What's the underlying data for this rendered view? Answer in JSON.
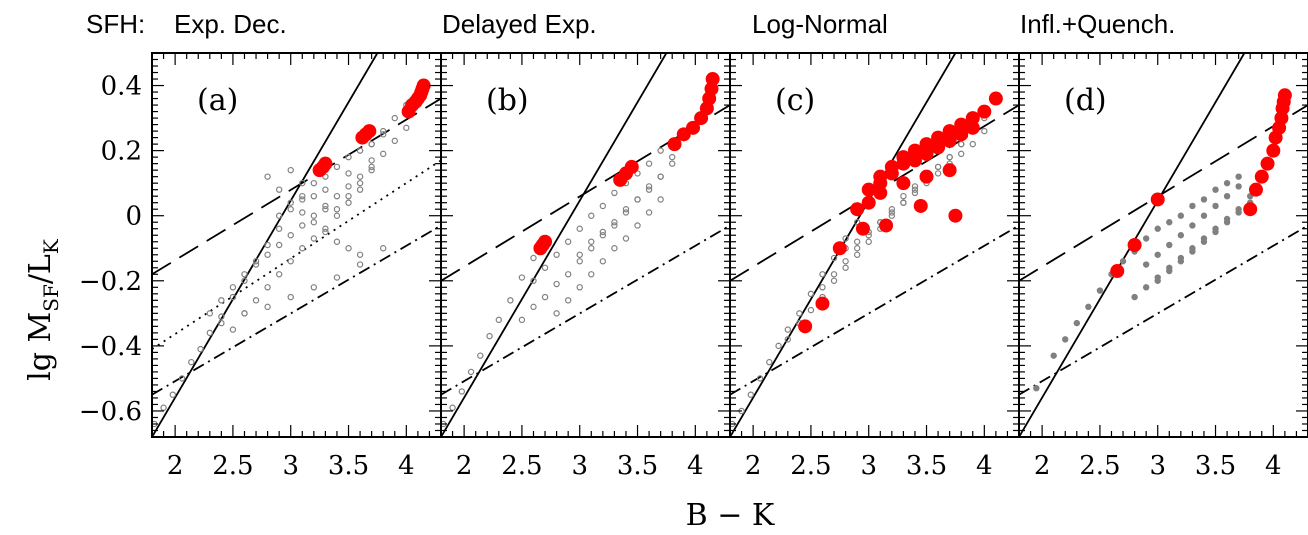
{
  "figure": {
    "xlabel": "B − K",
    "ylabel_main": "lg M",
    "ylabel_sub1": "SF",
    "ylabel_mid": "/L",
    "ylabel_sub2": "K",
    "sfh_prefix": "SFH:",
    "colors": {
      "model": "#808080",
      "highlight": "#ff0000",
      "line": "#000000"
    }
  },
  "chart_data": [
    {
      "type": "scatter",
      "panel": "(a)",
      "title": "Exp. Dec.",
      "xlim": [
        1.8,
        4.3
      ],
      "ylim": [
        -0.68,
        0.5
      ],
      "xticks": [
        "2",
        "2.5",
        "3",
        "3.5",
        "4"
      ],
      "yticks": [
        "−0.6",
        "−0.4",
        "−0.2",
        "0",
        "0.2",
        "0.4"
      ],
      "lines": [
        {
          "style": "solid",
          "x": [
            1.8,
            3.75
          ],
          "y": [
            -0.68,
            0.5
          ]
        },
        {
          "style": "dashed",
          "x": [
            1.8,
            4.3
          ],
          "y": [
            -0.18,
            0.36
          ]
        },
        {
          "style": "dotted",
          "x": [
            1.8,
            4.3
          ],
          "y": [
            -0.41,
            0.17
          ]
        },
        {
          "style": "dashdot",
          "x": [
            1.8,
            4.3
          ],
          "y": [
            -0.55,
            -0.03
          ]
        }
      ],
      "series": [
        {
          "marker": "open-circle",
          "color": "#808080",
          "x": [
            1.82,
            1.9,
            1.98,
            2.06,
            2.14,
            2.22,
            2.3,
            2.4,
            2.5,
            2.6,
            2.7,
            2.8,
            2.9,
            3.0,
            3.1,
            3.2,
            3.3,
            3.4,
            3.5,
            3.6,
            3.7,
            3.8,
            3.9,
            4.0,
            2.3,
            2.4,
            2.5,
            2.6,
            2.7,
            2.8,
            2.9,
            3.0,
            3.1,
            3.2,
            3.3,
            3.4,
            3.5,
            3.6,
            3.7,
            3.8,
            3.9,
            4.0,
            2.5,
            2.6,
            2.7,
            2.8,
            2.9,
            3.0,
            3.1,
            3.2,
            3.3,
            3.4,
            3.5,
            3.6,
            2.8,
            2.9,
            3.0,
            3.1,
            3.2,
            3.3,
            3.4,
            3.5,
            3.6,
            3.7,
            3.8,
            3.0,
            3.1,
            3.2,
            3.3,
            3.4,
            3.5,
            3.6,
            3.7,
            2.4,
            2.6,
            2.8,
            3.0,
            3.2,
            3.4,
            3.6,
            3.8,
            2.9,
            3.1,
            3.3,
            3.5,
            3.7
          ],
          "y": [
            -0.64,
            -0.59,
            -0.55,
            -0.5,
            -0.45,
            -0.41,
            -0.36,
            -0.31,
            -0.25,
            -0.2,
            -0.14,
            -0.09,
            -0.04,
            0.02,
            0.06,
            0.1,
            0.12,
            0.15,
            0.18,
            0.2,
            0.22,
            0.26,
            0.3,
            0.34,
            -0.3,
            -0.26,
            -0.22,
            -0.18,
            -0.15,
            -0.12,
            -0.09,
            -0.06,
            -0.03,
            0.0,
            0.03,
            0.06,
            0.09,
            0.12,
            0.15,
            0.19,
            0.23,
            0.27,
            -0.35,
            -0.3,
            -0.26,
            -0.22,
            -0.18,
            -0.14,
            -0.1,
            -0.07,
            -0.04,
            0.0,
            0.04,
            0.08,
            0.12,
            0.08,
            0.04,
            0.01,
            -0.02,
            -0.05,
            -0.08,
            -0.1,
            -0.12,
            0.22,
            0.25,
            0.14,
            0.1,
            0.06,
            0.02,
            0.02,
            0.06,
            0.1,
            0.14,
            -0.33,
            -0.3,
            -0.28,
            -0.25,
            -0.22,
            -0.19,
            -0.15,
            -0.1,
            0.0,
            0.05,
            0.08,
            0.13,
            0.17
          ]
        },
        {
          "marker": "filled-circle",
          "color": "#ff0000",
          "x": [
            3.25,
            3.28,
            3.3,
            3.62,
            3.65,
            3.68,
            4.02,
            4.05,
            4.08,
            4.1,
            4.12,
            4.13,
            4.14,
            4.15
          ],
          "y": [
            0.14,
            0.15,
            0.16,
            0.24,
            0.25,
            0.26,
            0.32,
            0.34,
            0.35,
            0.36,
            0.37,
            0.38,
            0.39,
            0.4
          ]
        }
      ]
    },
    {
      "type": "scatter",
      "panel": "(b)",
      "title": "Delayed Exp.",
      "xlim": [
        1.8,
        4.3
      ],
      "ylim": [
        -0.68,
        0.5
      ],
      "xticks": [
        "2",
        "2.5",
        "3",
        "3.5",
        "4"
      ],
      "lines": [
        {
          "style": "solid",
          "x": [
            1.8,
            3.75
          ],
          "y": [
            -0.68,
            0.5
          ]
        },
        {
          "style": "dashed",
          "x": [
            1.8,
            4.3
          ],
          "y": [
            -0.2,
            0.34
          ]
        },
        {
          "style": "dashdot",
          "x": [
            1.8,
            4.3
          ],
          "y": [
            -0.55,
            -0.03
          ]
        }
      ],
      "series": [
        {
          "marker": "open-circle",
          "color": "#808080",
          "x": [
            1.82,
            1.9,
            1.98,
            2.06,
            2.14,
            2.22,
            2.3,
            2.4,
            2.5,
            2.6,
            2.7,
            2.5,
            2.6,
            2.7,
            2.8,
            2.9,
            3.0,
            3.1,
            3.2,
            3.3,
            3.4,
            3.5,
            3.6,
            3.7,
            3.8,
            2.6,
            2.7,
            2.8,
            2.9,
            3.0,
            3.1,
            3.2,
            3.3,
            3.4,
            3.5,
            3.6,
            3.7,
            2.8,
            2.9,
            3.0,
            3.1,
            3.2,
            3.3,
            3.4,
            3.5,
            3.6,
            3.7,
            3.0,
            3.1,
            3.2,
            3.3,
            3.4,
            3.5,
            3.6,
            3.7,
            3.8
          ],
          "y": [
            -0.64,
            -0.59,
            -0.54,
            -0.48,
            -0.43,
            -0.37,
            -0.32,
            -0.26,
            -0.19,
            -0.13,
            -0.09,
            -0.32,
            -0.28,
            -0.25,
            -0.21,
            -0.18,
            -0.14,
            -0.1,
            -0.06,
            -0.03,
            0.01,
            0.05,
            0.09,
            0.12,
            0.16,
            -0.2,
            -0.16,
            -0.12,
            -0.08,
            -0.04,
            0.0,
            0.03,
            0.07,
            0.1,
            0.13,
            0.16,
            0.2,
            -0.3,
            -0.26,
            -0.22,
            -0.18,
            -0.14,
            -0.1,
            -0.07,
            -0.03,
            0.01,
            0.05,
            -0.12,
            -0.08,
            -0.05,
            -0.02,
            0.02,
            0.05,
            0.08,
            0.12,
            0.18
          ]
        },
        {
          "marker": "filled-circle",
          "color": "#ff0000",
          "x": [
            2.66,
            2.68,
            2.7,
            3.35,
            3.4,
            3.45,
            3.82,
            3.9,
            3.98,
            4.05,
            4.1,
            4.12,
            4.14,
            4.15
          ],
          "y": [
            -0.1,
            -0.09,
            -0.08,
            0.11,
            0.13,
            0.15,
            0.22,
            0.25,
            0.27,
            0.3,
            0.33,
            0.36,
            0.39,
            0.42
          ]
        }
      ]
    },
    {
      "type": "scatter",
      "panel": "(c)",
      "title": "Log-Normal",
      "xlim": [
        1.8,
        4.3
      ],
      "ylim": [
        -0.68,
        0.5
      ],
      "xticks": [
        "2",
        "2.5",
        "3",
        "3.5",
        "4"
      ],
      "lines": [
        {
          "style": "solid",
          "x": [
            1.8,
            3.75
          ],
          "y": [
            -0.68,
            0.5
          ]
        },
        {
          "style": "dashed",
          "x": [
            1.8,
            4.3
          ],
          "y": [
            -0.2,
            0.34
          ]
        },
        {
          "style": "dashdot",
          "x": [
            1.8,
            4.3
          ],
          "y": [
            -0.55,
            -0.03
          ]
        }
      ],
      "series": [
        {
          "marker": "open-circle",
          "color": "#808080",
          "x": [
            1.82,
            1.9,
            1.98,
            2.06,
            2.14,
            2.22,
            2.3,
            2.4,
            2.5,
            2.6,
            2.7,
            2.8,
            2.9,
            3.0,
            2.3,
            2.4,
            2.5,
            2.6,
            2.7,
            2.8,
            2.9,
            3.0,
            3.1,
            3.2,
            3.3,
            3.4,
            3.5,
            3.6,
            3.7,
            3.8,
            3.9,
            2.6,
            2.7,
            2.8,
            2.9,
            3.0,
            3.1,
            3.2,
            3.3,
            3.4,
            3.5,
            3.6,
            3.7,
            3.8,
            3.9,
            4.0,
            2.8,
            2.9,
            3.0,
            3.1,
            3.2,
            3.3,
            3.4,
            3.5,
            3.6,
            3.7,
            3.8,
            3.9,
            4.0
          ],
          "y": [
            -0.64,
            -0.6,
            -0.55,
            -0.5,
            -0.45,
            -0.4,
            -0.35,
            -0.3,
            -0.24,
            -0.18,
            -0.13,
            -0.07,
            -0.02,
            0.04,
            -0.38,
            -0.33,
            -0.29,
            -0.25,
            -0.2,
            -0.16,
            -0.12,
            -0.08,
            -0.04,
            0.0,
            0.04,
            0.08,
            0.12,
            0.15,
            0.18,
            0.22,
            0.26,
            -0.22,
            -0.18,
            -0.14,
            -0.1,
            -0.06,
            -0.02,
            0.02,
            0.06,
            0.09,
            0.12,
            0.15,
            0.18,
            0.22,
            0.26,
            0.3,
            -0.1,
            -0.08,
            -0.05,
            -0.02,
            0.01,
            0.04,
            0.07,
            0.1,
            0.13,
            0.16,
            0.19,
            0.22,
            0.26
          ]
        },
        {
          "marker": "filled-circle",
          "color": "#ff0000",
          "x": [
            2.45,
            2.6,
            2.75,
            2.9,
            3.0,
            3.1,
            3.2,
            3.3,
            3.4,
            3.5,
            3.6,
            3.7,
            3.8,
            3.9,
            4.0,
            4.1,
            3.1,
            3.2,
            3.3,
            3.4,
            3.5,
            3.6,
            3.7,
            3.8,
            3.9,
            3.0,
            3.1,
            3.3,
            3.5,
            3.7,
            2.95,
            3.15,
            3.45,
            3.75
          ],
          "y": [
            -0.34,
            -0.27,
            -0.1,
            0.02,
            0.08,
            0.12,
            0.15,
            0.18,
            0.2,
            0.22,
            0.24,
            0.26,
            0.28,
            0.3,
            0.32,
            0.36,
            0.1,
            0.13,
            0.16,
            0.17,
            0.19,
            0.21,
            0.23,
            0.25,
            0.27,
            0.04,
            0.07,
            0.1,
            0.12,
            0.14,
            -0.04,
            -0.03,
            0.03,
            0.0
          ]
        }
      ]
    },
    {
      "type": "scatter",
      "panel": "(d)",
      "title": "Infl.+Quench.",
      "xlim": [
        1.8,
        4.3
      ],
      "ylim": [
        -0.68,
        0.5
      ],
      "xticks": [
        "2",
        "2.5",
        "3",
        "3.5",
        "4"
      ],
      "lines": [
        {
          "style": "solid",
          "x": [
            1.8,
            3.75
          ],
          "y": [
            -0.68,
            0.5
          ]
        },
        {
          "style": "dashed",
          "x": [
            1.8,
            4.3
          ],
          "y": [
            -0.2,
            0.34
          ]
        },
        {
          "style": "dashdot",
          "x": [
            1.8,
            4.3
          ],
          "y": [
            -0.55,
            -0.03
          ]
        }
      ],
      "series": [
        {
          "marker": "filled-circle-small",
          "color": "#808080",
          "x": [
            1.95,
            2.1,
            2.2,
            2.3,
            2.4,
            2.5,
            2.6,
            2.7,
            2.8,
            2.9,
            3.0,
            3.1,
            3.2,
            3.3,
            3.4,
            3.5,
            3.6,
            3.7,
            2.8,
            2.9,
            3.0,
            3.1,
            3.2,
            3.3,
            3.4,
            3.5,
            3.6,
            3.7,
            3.8,
            2.9,
            3.0,
            3.1,
            3.2,
            3.3,
            3.4,
            3.5,
            3.6,
            3.7,
            3.0,
            3.1,
            3.2,
            3.3,
            3.4,
            3.5,
            3.6,
            3.7,
            3.8
          ],
          "y": [
            -0.53,
            -0.43,
            -0.38,
            -0.33,
            -0.28,
            -0.23,
            -0.18,
            -0.14,
            -0.11,
            -0.07,
            -0.04,
            -0.02,
            0.0,
            0.03,
            0.05,
            0.08,
            0.1,
            0.12,
            -0.25,
            -0.22,
            -0.19,
            -0.16,
            -0.13,
            -0.1,
            -0.07,
            -0.04,
            -0.01,
            0.02,
            0.06,
            -0.15,
            -0.12,
            -0.09,
            -0.06,
            -0.03,
            0.0,
            0.03,
            0.06,
            0.09,
            -0.2,
            -0.17,
            -0.14,
            -0.11,
            -0.08,
            -0.05,
            -0.02,
            0.01,
            0.04
          ]
        },
        {
          "marker": "filled-circle",
          "color": "#ff0000",
          "x": [
            2.65,
            2.8,
            3.0,
            3.8,
            3.85,
            3.9,
            3.95,
            4.0,
            4.02,
            4.05,
            4.07,
            4.08,
            4.09,
            4.1
          ],
          "y": [
            -0.17,
            -0.09,
            0.05,
            0.02,
            0.08,
            0.12,
            0.16,
            0.2,
            0.24,
            0.27,
            0.3,
            0.33,
            0.35,
            0.37
          ]
        }
      ]
    }
  ]
}
